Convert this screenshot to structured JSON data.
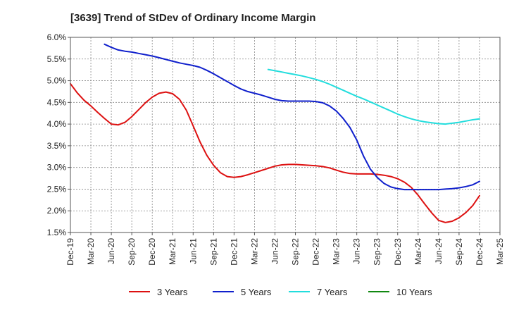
{
  "chart_data": {
    "type": "line",
    "title": "[3639]  Trend of StDev of Ordinary Income Margin",
    "xlabel": "",
    "ylabel": "",
    "x_tick_labels": [
      "Dec-19",
      "Mar-20",
      "Jun-20",
      "Sep-20",
      "Dec-20",
      "Mar-21",
      "Jun-21",
      "Sep-21",
      "Dec-21",
      "Mar-22",
      "Jun-22",
      "Sep-22",
      "Dec-22",
      "Mar-23",
      "Jun-23",
      "Sep-23",
      "Dec-23",
      "Mar-24",
      "Jun-24",
      "Sep-24",
      "Dec-24",
      "Mar-25"
    ],
    "y_tick_labels": [
      "1.5%",
      "2.0%",
      "2.5%",
      "3.0%",
      "3.5%",
      "4.0%",
      "4.5%",
      "5.0%",
      "5.5%",
      "6.0%"
    ],
    "y_ticks": [
      1.5,
      2.0,
      2.5,
      3.0,
      3.5,
      4.0,
      4.5,
      5.0,
      5.5,
      6.0
    ],
    "ylim": [
      1.5,
      6.0
    ],
    "grid": true,
    "legend_position": "bottom",
    "series": [
      {
        "name": "3 Years",
        "color": "#dd1111",
        "x": [
          "2019-12",
          "2020-01",
          "2020-02",
          "2020-03",
          "2020-04",
          "2020-05",
          "2020-06",
          "2020-07",
          "2020-08",
          "2020-09",
          "2020-10",
          "2020-11",
          "2020-12",
          "2021-01",
          "2021-02",
          "2021-03",
          "2021-04",
          "2021-05",
          "2021-06",
          "2021-07",
          "2021-08",
          "2021-09",
          "2021-10",
          "2021-11",
          "2021-12",
          "2022-01",
          "2022-02",
          "2022-03",
          "2022-04",
          "2022-05",
          "2022-06",
          "2022-07",
          "2022-08",
          "2022-09",
          "2022-10",
          "2022-11",
          "2022-12",
          "2023-01",
          "2023-02",
          "2023-03",
          "2023-04",
          "2023-05",
          "2023-06",
          "2023-07",
          "2023-08",
          "2023-09",
          "2023-10",
          "2023-11",
          "2023-12",
          "2024-01",
          "2024-02",
          "2024-03",
          "2024-04",
          "2024-05",
          "2024-06",
          "2024-07",
          "2024-08",
          "2024-09",
          "2024-10",
          "2024-11",
          "2024-12"
        ],
        "values": [
          4.93,
          4.72,
          4.55,
          4.42,
          4.27,
          4.13,
          4.0,
          3.98,
          4.04,
          4.17,
          4.33,
          4.49,
          4.62,
          4.71,
          4.74,
          4.7,
          4.57,
          4.32,
          3.96,
          3.59,
          3.28,
          3.05,
          2.88,
          2.79,
          2.77,
          2.79,
          2.83,
          2.88,
          2.93,
          2.98,
          3.03,
          3.06,
          3.07,
          3.07,
          3.06,
          3.05,
          3.04,
          3.02,
          2.99,
          2.94,
          2.89,
          2.86,
          2.85,
          2.85,
          2.85,
          2.84,
          2.82,
          2.79,
          2.74,
          2.66,
          2.54,
          2.36,
          2.15,
          1.95,
          1.78,
          1.73,
          1.76,
          1.84,
          1.96,
          2.12,
          2.35
        ]
      },
      {
        "name": "5 Years",
        "color": "#1020cc",
        "x": [
          "2020-05",
          "2020-06",
          "2020-07",
          "2020-08",
          "2020-09",
          "2020-10",
          "2020-11",
          "2020-12",
          "2021-01",
          "2021-02",
          "2021-03",
          "2021-04",
          "2021-05",
          "2021-06",
          "2021-07",
          "2021-08",
          "2021-09",
          "2021-10",
          "2021-11",
          "2021-12",
          "2022-01",
          "2022-02",
          "2022-03",
          "2022-04",
          "2022-05",
          "2022-06",
          "2022-07",
          "2022-08",
          "2022-09",
          "2022-10",
          "2022-11",
          "2022-12",
          "2023-01",
          "2023-02",
          "2023-03",
          "2023-04",
          "2023-05",
          "2023-06",
          "2023-07",
          "2023-08",
          "2023-09",
          "2023-10",
          "2023-11",
          "2023-12",
          "2024-01",
          "2024-02",
          "2024-03",
          "2024-04",
          "2024-05",
          "2024-06",
          "2024-07",
          "2024-08",
          "2024-09",
          "2024-10",
          "2024-11",
          "2024-12"
        ],
        "values": [
          5.84,
          5.77,
          5.71,
          5.68,
          5.66,
          5.63,
          5.6,
          5.57,
          5.53,
          5.49,
          5.45,
          5.41,
          5.38,
          5.35,
          5.31,
          5.24,
          5.16,
          5.07,
          4.98,
          4.89,
          4.81,
          4.75,
          4.71,
          4.67,
          4.62,
          4.57,
          4.54,
          4.53,
          4.53,
          4.53,
          4.53,
          4.52,
          4.49,
          4.42,
          4.3,
          4.13,
          3.92,
          3.63,
          3.26,
          2.96,
          2.77,
          2.63,
          2.55,
          2.51,
          2.49,
          2.49,
          2.49,
          2.49,
          2.49,
          2.49,
          2.5,
          2.51,
          2.53,
          2.56,
          2.6,
          2.68
        ]
      },
      {
        "name": "7 Years",
        "color": "#22dddd",
        "x": [
          "2022-05",
          "2022-06",
          "2022-07",
          "2022-08",
          "2022-09",
          "2022-10",
          "2022-11",
          "2022-12",
          "2023-01",
          "2023-02",
          "2023-03",
          "2023-04",
          "2023-05",
          "2023-06",
          "2023-07",
          "2023-08",
          "2023-09",
          "2023-10",
          "2023-11",
          "2023-12",
          "2024-01",
          "2024-02",
          "2024-03",
          "2024-04",
          "2024-05",
          "2024-06",
          "2024-07",
          "2024-08",
          "2024-09",
          "2024-10",
          "2024-11",
          "2024-12"
        ],
        "values": [
          5.26,
          5.23,
          5.2,
          5.17,
          5.14,
          5.11,
          5.07,
          5.03,
          4.98,
          4.92,
          4.85,
          4.78,
          4.71,
          4.64,
          4.58,
          4.51,
          4.44,
          4.37,
          4.3,
          4.23,
          4.17,
          4.12,
          4.08,
          4.05,
          4.03,
          4.01,
          4.0,
          4.02,
          4.04,
          4.07,
          4.1,
          4.12
        ]
      },
      {
        "name": "10 Years",
        "color": "#118811",
        "x": [],
        "values": []
      }
    ]
  }
}
